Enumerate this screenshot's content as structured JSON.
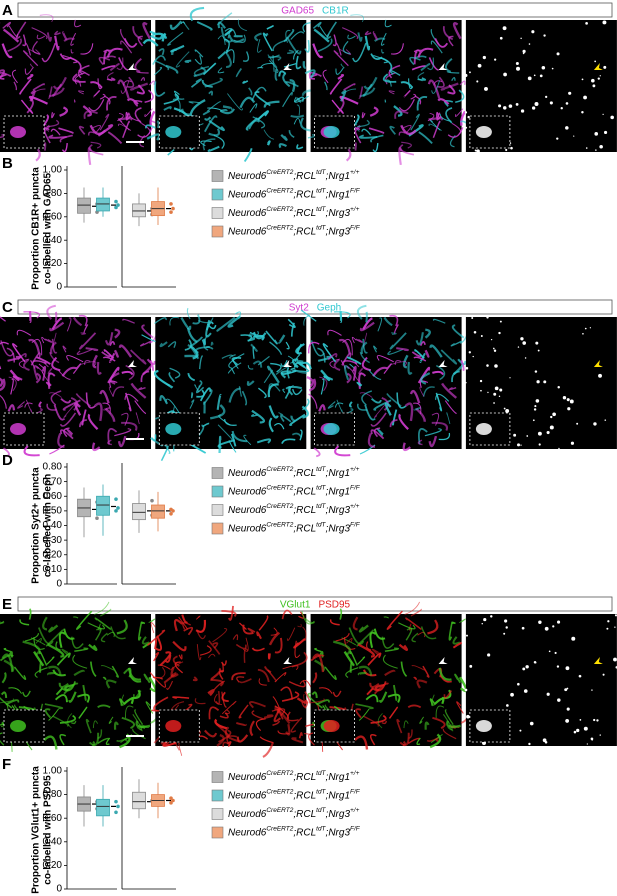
{
  "panels": [
    {
      "letter": "A",
      "channels": [
        {
          "text": "GAD65",
          "color": "#d03cd0"
        },
        {
          "text": "CB1R",
          "color": "#30c8d0"
        }
      ]
    },
    {
      "letter": "C",
      "channels": [
        {
          "text": "Syt2",
          "color": "#d03cd0"
        },
        {
          "text": "Geph",
          "color": "#30c8d0"
        }
      ]
    },
    {
      "letter": "E",
      "channels": [
        {
          "text": "VGlut1",
          "color": "#40c020"
        },
        {
          "text": "PSD95",
          "color": "#e02020"
        }
      ]
    }
  ],
  "chart_data": [
    {
      "type": "box",
      "panel": "B",
      "ylabel": [
        "Proportion CB1R+ puncta",
        "co-labelled with GAD65"
      ],
      "ylim": [
        0,
        1
      ],
      "yticks": [
        0,
        {
          "value": 0.2,
          "label": "0.20"
        },
        {
          "value": 0.4,
          "label": "0.40"
        },
        {
          "value": 0.6,
          "label": "0.60"
        },
        {
          "value": 0.8,
          "label": "0.80"
        },
        {
          "value": 1,
          "label": "1.00"
        }
      ],
      "series": [
        {
          "name": [
            "Neurod6",
            "CreERT2",
            ";RCL",
            "tdT",
            ";Nrg1",
            "+/+"
          ],
          "color": "#b4b4b4",
          "min": 0.55,
          "q1": 0.63,
          "median": 0.7,
          "q3": 0.76,
          "max": 0.85,
          "mean": 0.69,
          "points": [
            0.71,
            0.66,
            0.64
          ]
        },
        {
          "name": [
            "Neurod6",
            "CreERT2",
            ";RCL",
            "tdT",
            ";Nrg1",
            "F/F"
          ],
          "color": "#6ec9cf",
          "min": 0.6,
          "q1": 0.65,
          "median": 0.71,
          "q3": 0.76,
          "max": 0.85,
          "mean": 0.7,
          "points": [
            0.73,
            0.7,
            0.68
          ]
        },
        {
          "name": [
            "Neurod6",
            "CreERT2",
            ";RCL",
            "tdT",
            ";Nrg3",
            "+/+"
          ],
          "color": "#dcdcdc",
          "min": 0.52,
          "q1": 0.6,
          "median": 0.65,
          "q3": 0.71,
          "max": 0.8,
          "mean": 0.65,
          "points": [
            0.67,
            0.64,
            0.62
          ]
        },
        {
          "name": [
            "Neurod6",
            "CreERT2",
            ";RCL",
            "tdT",
            ";Nrg3",
            "F/F"
          ],
          "color": "#f0a77e",
          "min": 0.53,
          "q1": 0.61,
          "median": 0.67,
          "q3": 0.73,
          "max": 0.85,
          "mean": 0.67,
          "points": [
            0.71,
            0.67,
            0.64
          ]
        }
      ]
    },
    {
      "type": "box",
      "panel": "D",
      "ylabel": [
        "Proportion Syt2+ puncta",
        "co-labelled with Geph"
      ],
      "ylim": [
        0,
        0.8
      ],
      "yticks": [
        0,
        {
          "value": 0.1,
          "label": "0.10"
        },
        {
          "value": 0.2,
          "label": "0.20"
        },
        {
          "value": 0.3,
          "label": "0.30"
        },
        {
          "value": 0.4,
          "label": "0.40"
        },
        {
          "value": 0.5,
          "label": "0.50"
        },
        {
          "value": 0.6,
          "label": "0.60"
        },
        {
          "value": 0.7,
          "label": "0.70"
        },
        {
          "value": 0.8,
          "label": "0.80"
        }
      ],
      "series": [
        {
          "name": [
            "Neurod6",
            "CreERT2",
            ";RCL",
            "tdT",
            ";Nrg1",
            "+/+"
          ],
          "color": "#b4b4b4",
          "min": 0.32,
          "q1": 0.46,
          "median": 0.52,
          "q3": 0.58,
          "max": 0.66,
          "mean": 0.51,
          "points": [
            0.56,
            0.48,
            0.45
          ]
        },
        {
          "name": [
            "Neurod6",
            "CreERT2",
            ";RCL",
            "tdT",
            ";Nrg1",
            "F/F"
          ],
          "color": "#6ec9cf",
          "min": 0.33,
          "q1": 0.47,
          "median": 0.54,
          "q3": 0.6,
          "max": 0.68,
          "mean": 0.53,
          "points": [
            0.58,
            0.52,
            0.5
          ]
        },
        {
          "name": [
            "Neurod6",
            "CreERT2",
            ";RCL",
            "tdT",
            ";Nrg3",
            "+/+"
          ],
          "color": "#dcdcdc",
          "min": 0.35,
          "q1": 0.44,
          "median": 0.49,
          "q3": 0.55,
          "max": 0.64,
          "mean": 0.5,
          "points": [
            0.57,
            0.5,
            0.47
          ]
        },
        {
          "name": [
            "Neurod6",
            "CreERT2",
            ";RCL",
            "tdT",
            ";Nrg3",
            "F/F"
          ],
          "color": "#f0a77e",
          "min": 0.36,
          "q1": 0.45,
          "median": 0.5,
          "q3": 0.54,
          "max": 0.63,
          "mean": 0.5,
          "points": [
            0.51,
            0.5,
            0.48
          ]
        }
      ]
    },
    {
      "type": "box",
      "panel": "F",
      "ylabel": [
        "Proportion VGlut1+ puncta",
        "co-labelled with PSD95"
      ],
      "ylim": [
        0,
        1
      ],
      "yticks": [
        0,
        {
          "value": 0.2,
          "label": "0.20"
        },
        {
          "value": 0.4,
          "label": "0.40"
        },
        {
          "value": 0.6,
          "label": "0.60"
        },
        {
          "value": 0.8,
          "label": "0.80"
        },
        {
          "value": 1,
          "label": "1.00"
        }
      ],
      "series": [
        {
          "name": [
            "Neurod6",
            "CreERT2",
            ";RCL",
            "tdT",
            ";Nrg1",
            "+/+"
          ],
          "color": "#b4b4b4",
          "min": 0.53,
          "q1": 0.66,
          "median": 0.72,
          "q3": 0.78,
          "max": 0.88,
          "mean": 0.72,
          "points": [
            0.74,
            0.71,
            0.68
          ]
        },
        {
          "name": [
            "Neurod6",
            "CreERT2",
            ";RCL",
            "tdT",
            ";Nrg1",
            "F/F"
          ],
          "color": "#6ec9cf",
          "min": 0.53,
          "q1": 0.62,
          "median": 0.7,
          "q3": 0.76,
          "max": 0.88,
          "mean": 0.7,
          "points": [
            0.74,
            0.7,
            0.65
          ]
        },
        {
          "name": [
            "Neurod6",
            "CreERT2",
            ";RCL",
            "tdT",
            ";Nrg3",
            "+/+"
          ],
          "color": "#dcdcdc",
          "min": 0.6,
          "q1": 0.68,
          "median": 0.74,
          "q3": 0.82,
          "max": 0.93,
          "mean": 0.74,
          "points": [
            0.75,
            0.73
          ]
        },
        {
          "name": [
            "Neurod6",
            "CreERT2",
            ";RCL",
            "tdT",
            ";Nrg3",
            "F/F"
          ],
          "color": "#f0a77e",
          "min": 0.6,
          "q1": 0.7,
          "median": 0.75,
          "q3": 0.8,
          "max": 0.9,
          "mean": 0.75,
          "points": [
            0.77,
            0.75,
            0.73
          ]
        }
      ]
    }
  ]
}
